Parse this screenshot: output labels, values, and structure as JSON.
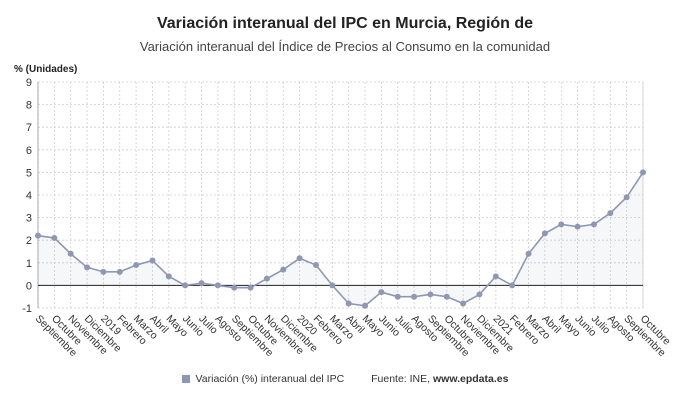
{
  "chart_data": {
    "type": "line",
    "title": "Variación interanual del IPC en Murcia, Región de",
    "subtitle": "Variación interanual del Índice de Precios al Consumo en la comunidad",
    "ylabel": "% (Unidades)",
    "ylim": [
      -1,
      9
    ],
    "yticks": [
      -1,
      0,
      1,
      2,
      3,
      4,
      5,
      6,
      7,
      8,
      9
    ],
    "grid": true,
    "legend_position": "bottom",
    "categories": [
      "Septiembre",
      "Octubre",
      "Noviembre",
      "Diciembre",
      "2019",
      "Febrero",
      "Marzo",
      "Abril",
      "Mayo",
      "Junio",
      "Julio",
      "Agosto",
      "Septiembre",
      "Octubre",
      "Noviembre",
      "Diciembre",
      "2020",
      "Febrero",
      "Marzo",
      "Abril",
      "Mayo",
      "Junio",
      "Julio",
      "Agosto",
      "Septiembre",
      "Octubre",
      "Noviembre",
      "Diciembre",
      "2021",
      "Febrero",
      "Marzo",
      "Abril",
      "Mayo",
      "Junio",
      "Julio",
      "Agosto",
      "Septiembre",
      "Octubre"
    ],
    "series": [
      {
        "name": "Variación (%) interanual del IPC",
        "color": "#8f97b5",
        "values": [
          2.2,
          2.1,
          1.4,
          0.8,
          0.6,
          0.6,
          0.9,
          1.1,
          0.4,
          0.0,
          0.1,
          0.0,
          -0.1,
          -0.1,
          0.3,
          0.7,
          1.2,
          0.9,
          0.0,
          -0.8,
          -0.9,
          -0.3,
          -0.5,
          -0.5,
          -0.4,
          -0.5,
          -0.8,
          -0.4,
          0.4,
          0.0,
          1.4,
          2.3,
          2.7,
          2.6,
          2.7,
          3.2,
          3.9,
          5.0
        ]
      }
    ]
  },
  "source": {
    "label": "Fuente: INE,",
    "site": "www.epdata.es"
  }
}
